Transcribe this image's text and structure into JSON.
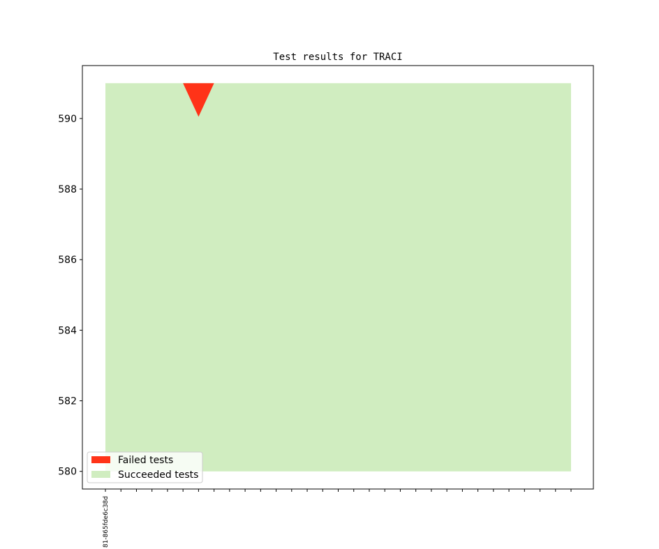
{
  "chart_data": {
    "type": "area",
    "title": "Test results for TRACI",
    "xlabel": "",
    "ylabel": "",
    "ylim": [
      579.5,
      591.5
    ],
    "yticks": [
      580,
      582,
      584,
      586,
      588,
      590
    ],
    "x_count": 31,
    "x_tick_labels": [
      "81-865fde6c38d"
    ],
    "series": [
      {
        "name": "Succeeded tests",
        "color": "#d0edc0",
        "x": [
          0,
          30
        ],
        "y0": [
          580,
          580
        ],
        "y1": [
          591,
          591
        ]
      },
      {
        "name": "Failed tests",
        "color": "#ff3318",
        "x": [
          5,
          6,
          7
        ],
        "y0": [
          591,
          590.05,
          591
        ],
        "y1": [
          591,
          591,
          591
        ]
      }
    ],
    "legend": {
      "placement": "lower-left",
      "entries": [
        {
          "label": "Failed tests",
          "color": "#ff3318"
        },
        {
          "label": "Succeeded tests",
          "color": "#d0edc0"
        }
      ]
    },
    "grid": false
  }
}
